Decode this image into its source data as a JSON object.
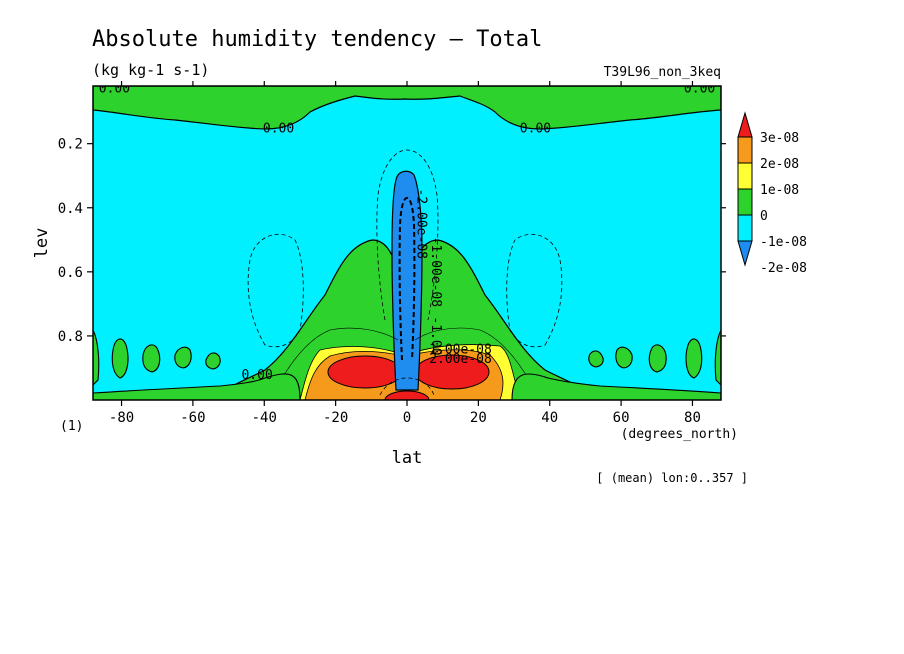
{
  "chart_data": {
    "type": "heatmap",
    "title": "Absolute humidity tendency — Total",
    "units": "(kg kg-1 s-1)",
    "run_label": "T39L96_non_3keq",
    "xlabel": "lat",
    "x_unit": "(degrees_north)",
    "ylabel": "lev",
    "y_unit": "(1)",
    "xlim": [
      -88,
      88
    ],
    "ylim": [
      1.0,
      0.02
    ],
    "x_ticks": [
      -80,
      -60,
      -40,
      -20,
      0,
      20,
      40,
      60,
      80
    ],
    "y_ticks": [
      0.2,
      0.4,
      0.6,
      0.8
    ],
    "averaging_note": "[ (mean) lon:0..357 ]",
    "colorbar": {
      "labels": [
        "3e-08",
        "2e-08",
        "1e-08",
        "0",
        "-1e-08",
        "-2e-08"
      ],
      "colors": [
        "#ee1c1c",
        "#f59a1a",
        "#ffff33",
        "#2dd22d",
        "#00f0ff",
        "#1f8cf0"
      ]
    },
    "contour_labels": [
      {
        "text": "0.00",
        "lat": -82,
        "lev": 0.04
      },
      {
        "text": "0.00",
        "lat": 82,
        "lev": 0.04
      },
      {
        "text": "0.00",
        "lat": -36,
        "lev": 0.165
      },
      {
        "text": "0.00",
        "lat": 36,
        "lev": 0.165
      },
      {
        "text": "0.00",
        "lat": -42,
        "lev": 0.935
      },
      {
        "text": "-2.00e-08",
        "lat": 3,
        "lev": 0.45
      },
      {
        "text": "-1.00e-08",
        "lat": 7,
        "lev": 0.6
      },
      {
        "text": "-1.00",
        "lat": 7,
        "lev": 0.8
      },
      {
        "text": "1.00e-08",
        "lat": 15,
        "lev": 0.855
      },
      {
        "text": "2.00e-08",
        "lat": 15,
        "lev": 0.885
      }
    ]
  }
}
